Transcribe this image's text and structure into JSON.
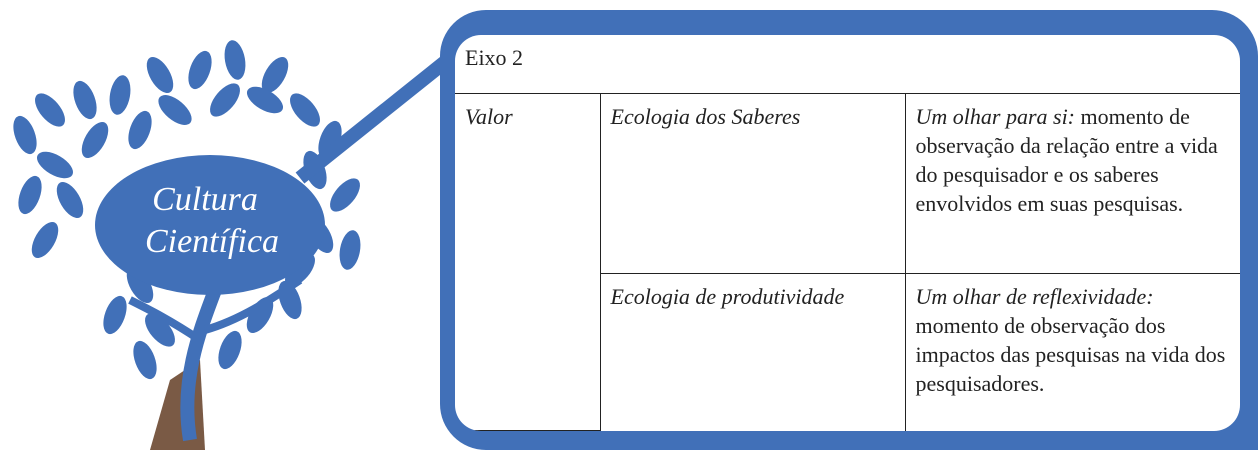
{
  "logo": {
    "line1": "Cultura",
    "line2": "Científica"
  },
  "table": {
    "title": "Eixo 2",
    "category": "Valor",
    "rows": [
      {
        "ecology": "Ecologia dos Saberes",
        "lead": "Um olhar para si:",
        "text": "momento de observação da relação entre a vida do pesquisador e os saberes envolvidos em suas pesquisas."
      },
      {
        "ecology": "Ecologia de produtividade",
        "lead": "Um olhar de reflexividade:",
        "text": "momento de observação dos impactos das pesquisas na vida dos pesquisadores."
      }
    ]
  }
}
